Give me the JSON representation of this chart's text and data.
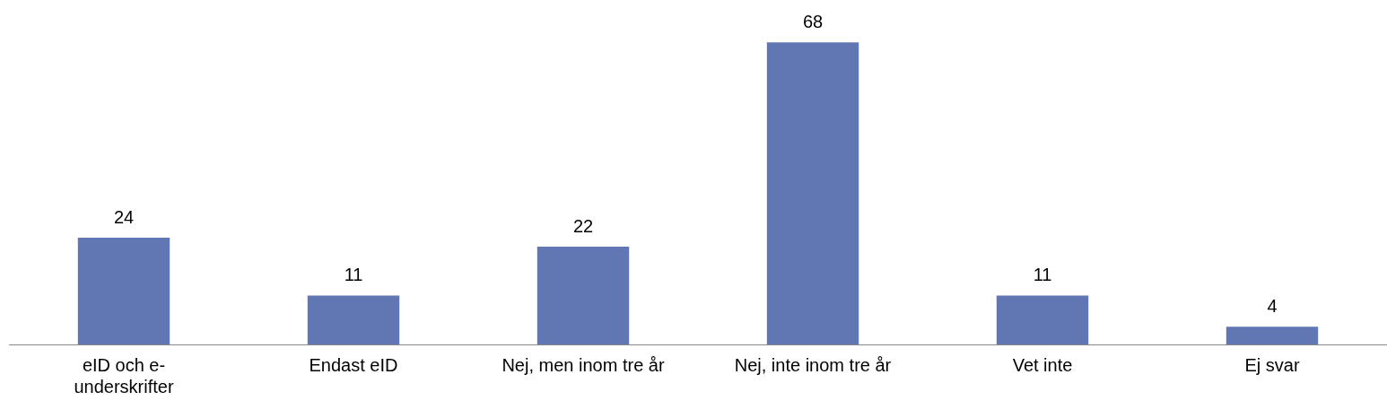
{
  "chart_data": {
    "type": "bar",
    "categories": [
      "eID och e-underskrifter",
      "Endast eID",
      "Nej, men inom tre år",
      "Nej, inte inom tre år",
      "Vet inte",
      "Ej svar"
    ],
    "values": [
      24,
      11,
      22,
      68,
      11,
      4
    ],
    "color": "#6077b4",
    "data_labels": true,
    "grid": false,
    "legend": false
  }
}
